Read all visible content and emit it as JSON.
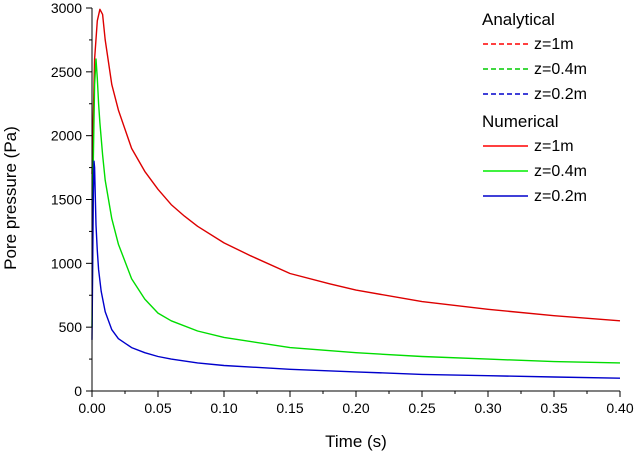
{
  "chart_data": {
    "type": "line",
    "xlabel": "Time (s)",
    "ylabel": "Pore pressure (Pa)",
    "xlim": [
      0,
      0.4
    ],
    "ylim": [
      0,
      3000
    ],
    "xticks": [
      {
        "v": 0.0,
        "label": "0.00"
      },
      {
        "v": 0.05,
        "label": "0.05"
      },
      {
        "v": 0.1,
        "label": "0.10"
      },
      {
        "v": 0.15,
        "label": "0.15"
      },
      {
        "v": 0.2,
        "label": "0.20"
      },
      {
        "v": 0.25,
        "label": "0.25"
      },
      {
        "v": 0.3,
        "label": "0.30"
      },
      {
        "v": 0.35,
        "label": "0.35"
      },
      {
        "v": 0.4,
        "label": "0.40"
      }
    ],
    "yticks": [
      {
        "v": 0,
        "label": "0"
      },
      {
        "v": 500,
        "label": "500"
      },
      {
        "v": 1000,
        "label": "1000"
      },
      {
        "v": 1500,
        "label": "1500"
      },
      {
        "v": 2000,
        "label": "2000"
      },
      {
        "v": 2500,
        "label": "2500"
      },
      {
        "v": 3000,
        "label": "3000"
      }
    ],
    "grid": false,
    "legend_position": "top-right",
    "legend_groups": [
      {
        "title": "Analytical",
        "style": "dashed",
        "entries": [
          {
            "label": "z=1m",
            "color": "#ff0000"
          },
          {
            "label": "z=0.4m",
            "color": "#00cc00"
          },
          {
            "label": "z=0.2m",
            "color": "#0000cc"
          }
        ]
      },
      {
        "title": "Numerical",
        "style": "solid",
        "entries": [
          {
            "label": "z=1m",
            "color": "#ff0000"
          },
          {
            "label": "z=0.4m",
            "color": "#00ee00"
          },
          {
            "label": "z=0.2m",
            "color": "#0000cc"
          }
        ]
      }
    ],
    "series": [
      {
        "label": "z=1m",
        "color": "#dd0000",
        "x": [
          0.0,
          0.002,
          0.004,
          0.006,
          0.008,
          0.01,
          0.015,
          0.02,
          0.03,
          0.04,
          0.05,
          0.06,
          0.07,
          0.08,
          0.1,
          0.12,
          0.15,
          0.18,
          0.2,
          0.25,
          0.3,
          0.35,
          0.4
        ],
        "y": [
          1700,
          2600,
          2900,
          2990,
          2950,
          2750,
          2400,
          2200,
          1900,
          1720,
          1580,
          1460,
          1370,
          1290,
          1160,
          1060,
          920,
          840,
          790,
          700,
          640,
          590,
          550
        ]
      },
      {
        "label": "z=0.4m",
        "color": "#00dd00",
        "x": [
          0.0,
          0.001,
          0.002,
          0.003,
          0.004,
          0.005,
          0.006,
          0.008,
          0.01,
          0.015,
          0.02,
          0.03,
          0.04,
          0.05,
          0.06,
          0.08,
          0.1,
          0.15,
          0.2,
          0.25,
          0.3,
          0.35,
          0.4
        ],
        "y": [
          500,
          1800,
          2400,
          2600,
          2450,
          2250,
          2100,
          1850,
          1650,
          1350,
          1150,
          880,
          720,
          610,
          550,
          470,
          420,
          340,
          300,
          270,
          250,
          230,
          220
        ]
      },
      {
        "label": "z=0.2m",
        "color": "#0000cc",
        "x": [
          0.0,
          0.0005,
          0.001,
          0.0015,
          0.002,
          0.003,
          0.004,
          0.005,
          0.007,
          0.01,
          0.015,
          0.02,
          0.03,
          0.04,
          0.05,
          0.06,
          0.08,
          0.1,
          0.15,
          0.2,
          0.25,
          0.3,
          0.35,
          0.4
        ],
        "y": [
          400,
          1000,
          1500,
          1800,
          1750,
          1300,
          1100,
          950,
          780,
          620,
          480,
          410,
          340,
          300,
          270,
          250,
          220,
          200,
          170,
          150,
          130,
          120,
          110,
          100
        ]
      }
    ]
  }
}
